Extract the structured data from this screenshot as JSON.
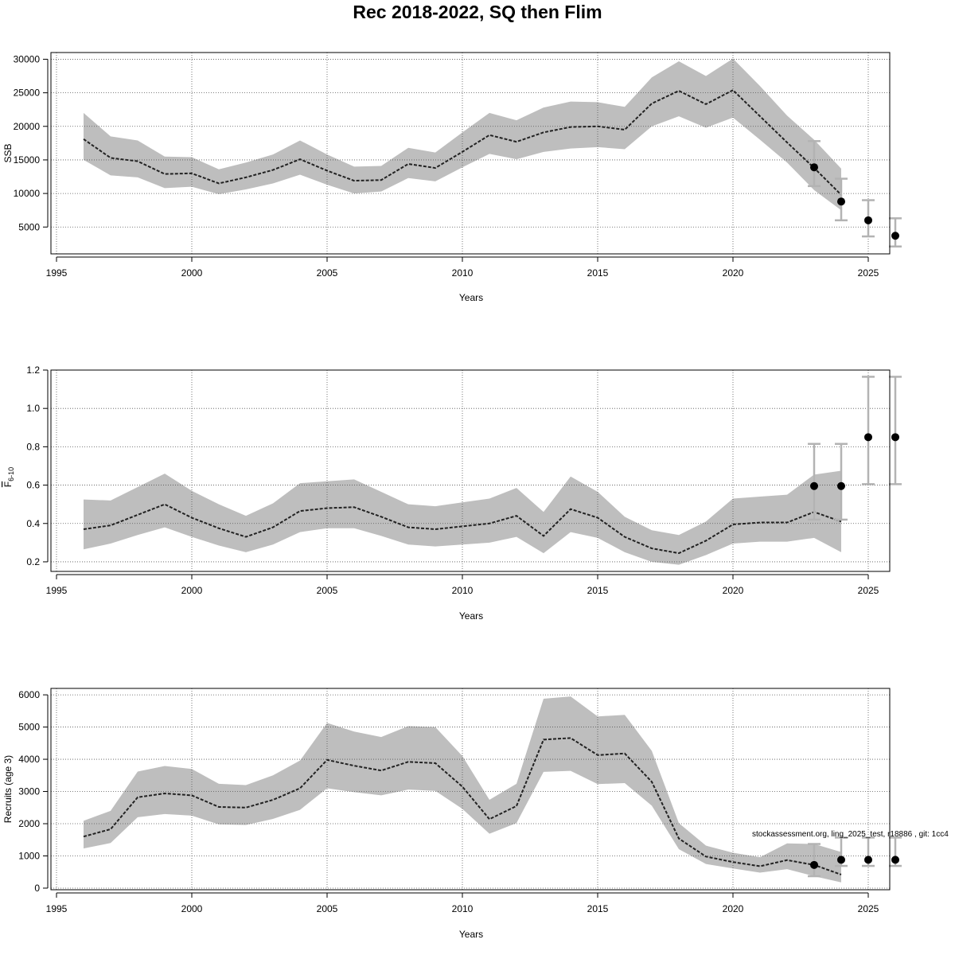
{
  "title": "Rec 2018-2022, SQ then Flim",
  "watermark": "stockassessment.org, ling_2025_test, r18886 , git: 1cc4",
  "colors": {
    "band": "#bebebe",
    "line": "#222222",
    "point": "#000000",
    "errorbar": "#b3b3b3",
    "grid": "#555555"
  },
  "chart_data": [
    {
      "type": "line",
      "id": "ssb",
      "xlabel": "Years",
      "ylabel": "SSB",
      "xlim": [
        1995,
        2026
      ],
      "ylim": [
        1000,
        31000
      ],
      "xticks": [
        1995,
        2000,
        2005,
        2010,
        2015,
        2020,
        2025
      ],
      "yticks": [
        5000,
        10000,
        15000,
        20000,
        25000,
        30000
      ],
      "ytick_labels": [
        "5000",
        "10000",
        "15000",
        "20000",
        "25000",
        "30000"
      ],
      "grid": true,
      "x": [
        1996,
        1997,
        1998,
        1999,
        2000,
        2001,
        2002,
        2003,
        2004,
        2005,
        2006,
        2007,
        2008,
        2009,
        2010,
        2011,
        2012,
        2013,
        2014,
        2015,
        2016,
        2017,
        2018,
        2019,
        2020,
        2021,
        2022,
        2023,
        2024
      ],
      "estimate": [
        18100,
        15300,
        14800,
        12900,
        13000,
        11500,
        12400,
        13500,
        15100,
        13400,
        11900,
        12000,
        14400,
        13800,
        16200,
        18700,
        17700,
        19100,
        19900,
        20000,
        19500,
        23400,
        25300,
        23300,
        25400,
        21500,
        17600,
        13800,
        9800
      ],
      "lower": [
        15000,
        12700,
        12400,
        10800,
        11000,
        9900,
        10600,
        11500,
        12800,
        11300,
        10000,
        10300,
        12300,
        11800,
        13900,
        15900,
        15100,
        16200,
        16700,
        16900,
        16600,
        20000,
        21500,
        19800,
        21300,
        18000,
        14600,
        10500,
        7500
      ],
      "upper": [
        22000,
        18500,
        17900,
        15500,
        15400,
        13600,
        14600,
        15800,
        17900,
        15800,
        14000,
        14100,
        16800,
        16100,
        19100,
        22000,
        20900,
        22800,
        23700,
        23600,
        22900,
        27300,
        29700,
        27500,
        30100,
        26000,
        21600,
        18000,
        13700
      ],
      "forecast": {
        "x": [
          2023,
          2024,
          2025,
          2026
        ],
        "median": [
          13900,
          8800,
          6000,
          3700
        ],
        "lower": [
          11100,
          6000,
          3600,
          2100
        ],
        "upper": [
          17800,
          12200,
          9000,
          6300
        ]
      }
    },
    {
      "type": "line",
      "id": "fbar",
      "xlabel": "Years",
      "ylabel": "F6-10",
      "ylabel_main": "F",
      "ylabel_sub": "6-10",
      "xlim": [
        1995,
        2026
      ],
      "ylim": [
        0.15,
        1.2
      ],
      "xticks": [
        1995,
        2000,
        2005,
        2010,
        2015,
        2020,
        2025
      ],
      "yticks": [
        0.2,
        0.4,
        0.6,
        0.8,
        1.0,
        1.2
      ],
      "ytick_labels": [
        "0.2",
        "0.4",
        "0.6",
        "0.8",
        "1.0",
        "1.2"
      ],
      "grid": true,
      "x": [
        1996,
        1997,
        1998,
        1999,
        2000,
        2001,
        2002,
        2003,
        2004,
        2005,
        2006,
        2007,
        2008,
        2009,
        2010,
        2011,
        2012,
        2013,
        2014,
        2015,
        2016,
        2017,
        2018,
        2019,
        2020,
        2021,
        2022,
        2023,
        2024
      ],
      "estimate": [
        0.37,
        0.39,
        0.445,
        0.5,
        0.43,
        0.375,
        0.33,
        0.38,
        0.465,
        0.48,
        0.485,
        0.435,
        0.38,
        0.37,
        0.385,
        0.4,
        0.44,
        0.335,
        0.475,
        0.43,
        0.33,
        0.27,
        0.245,
        0.31,
        0.395,
        0.405,
        0.405,
        0.46,
        0.41
      ],
      "lower": [
        0.265,
        0.295,
        0.34,
        0.38,
        0.33,
        0.285,
        0.25,
        0.29,
        0.355,
        0.375,
        0.375,
        0.335,
        0.29,
        0.28,
        0.29,
        0.3,
        0.33,
        0.245,
        0.355,
        0.325,
        0.25,
        0.2,
        0.185,
        0.235,
        0.295,
        0.305,
        0.305,
        0.325,
        0.25
      ],
      "upper": [
        0.525,
        0.52,
        0.59,
        0.66,
        0.57,
        0.5,
        0.44,
        0.505,
        0.61,
        0.62,
        0.63,
        0.565,
        0.5,
        0.49,
        0.51,
        0.53,
        0.585,
        0.46,
        0.645,
        0.565,
        0.435,
        0.365,
        0.34,
        0.41,
        0.53,
        0.54,
        0.55,
        0.655,
        0.675
      ],
      "forecast": {
        "x": [
          2023,
          2024,
          2025,
          2026
        ],
        "median": [
          0.595,
          0.595,
          0.85,
          0.85
        ],
        "lower": [
          0.42,
          0.42,
          0.605,
          0.605
        ],
        "upper": [
          0.815,
          0.815,
          1.165,
          1.165
        ]
      }
    },
    {
      "type": "line",
      "id": "recruits",
      "xlabel": "Years",
      "ylabel": "Recruits (age 3)",
      "xlim": [
        1995,
        2026
      ],
      "ylim": [
        -50,
        6200
      ],
      "xticks": [
        1995,
        2000,
        2005,
        2010,
        2015,
        2020,
        2025
      ],
      "yticks": [
        0,
        1000,
        2000,
        3000,
        4000,
        5000,
        6000
      ],
      "ytick_labels": [
        "0",
        "1000",
        "2000",
        "3000",
        "4000",
        "5000",
        "6000"
      ],
      "grid": true,
      "x": [
        1996,
        1997,
        1998,
        1999,
        2000,
        2001,
        2002,
        2003,
        2004,
        2005,
        2006,
        2007,
        2008,
        2009,
        2010,
        2011,
        2012,
        2013,
        2014,
        2015,
        2016,
        2017,
        2018,
        2019,
        2020,
        2021,
        2022,
        2023,
        2024
      ],
      "estimate": [
        1600,
        1830,
        2820,
        2940,
        2880,
        2520,
        2500,
        2740,
        3100,
        3980,
        3800,
        3650,
        3920,
        3880,
        3150,
        2140,
        2550,
        4610,
        4660,
        4130,
        4180,
        3300,
        1540,
        980,
        810,
        680,
        870,
        720,
        420
      ],
      "lower": [
        1230,
        1400,
        2200,
        2300,
        2250,
        1980,
        1960,
        2150,
        2430,
        3100,
        2980,
        2880,
        3060,
        3020,
        2460,
        1690,
        2020,
        3610,
        3640,
        3230,
        3260,
        2560,
        1210,
        750,
        610,
        480,
        590,
        370,
        180
      ],
      "upper": [
        2090,
        2400,
        3620,
        3790,
        3700,
        3240,
        3200,
        3500,
        3960,
        5130,
        4860,
        4690,
        5030,
        5000,
        4100,
        2740,
        3240,
        5880,
        5950,
        5330,
        5380,
        4260,
        2020,
        1320,
        1100,
        960,
        1390,
        1370,
        1120
      ],
      "forecast": {
        "x": [
          2023,
          2024,
          2025,
          2026
        ],
        "median": [
          720,
          880,
          880,
          880
        ],
        "lower": [
          370,
          690,
          690,
          690
        ],
        "upper": [
          1370,
          1570,
          1570,
          1570
        ]
      }
    }
  ]
}
